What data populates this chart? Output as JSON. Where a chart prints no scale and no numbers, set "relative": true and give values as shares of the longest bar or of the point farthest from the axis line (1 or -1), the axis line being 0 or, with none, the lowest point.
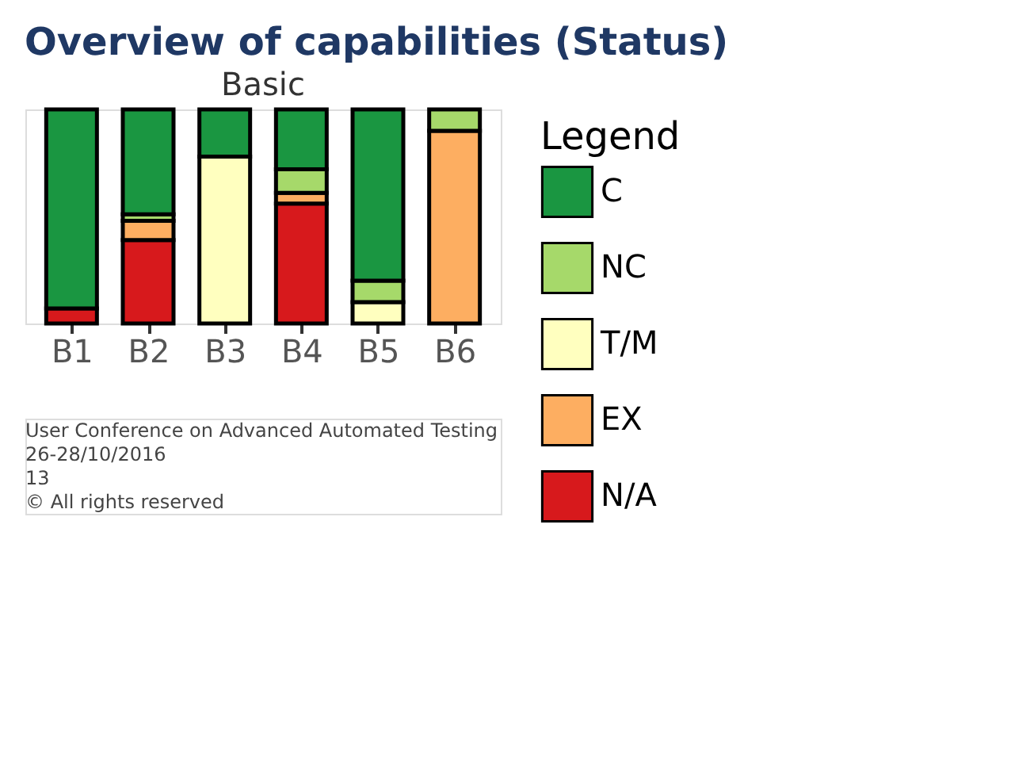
{
  "chart_data": {
    "type": "bar",
    "title": "Overview of capabilities (Status)",
    "subtitle": "Basic",
    "legend_title": "Legend",
    "categories": [
      "B1",
      "B2",
      "B3",
      "B4",
      "B5",
      "B6"
    ],
    "stacked": true,
    "relative": true,
    "legend": "right",
    "series": [
      {
        "name": "N/A",
        "color": "#d7191c",
        "values": [
          0.07,
          0.39,
          null,
          0.56,
          null,
          null
        ]
      },
      {
        "name": "EX",
        "color": "#fdae61",
        "values": [
          null,
          0.09,
          null,
          0.05,
          null,
          0.9
        ]
      },
      {
        "name": "T/M",
        "color": "#ffffbf",
        "values": [
          null,
          null,
          0.78,
          null,
          0.1,
          null
        ]
      },
      {
        "name": "NC",
        "color": "#a6d96a",
        "values": [
          null,
          0.03,
          null,
          0.11,
          0.1,
          0.1
        ]
      },
      {
        "name": "C",
        "color": "#1a9641",
        "values": [
          0.93,
          0.49,
          0.22,
          0.28,
          0.8,
          null
        ]
      }
    ],
    "annotations": [
      "User Conference on Advanced Automated Testing",
      "26-28/10/2016",
      "13",
      "© All rights reserved"
    ]
  }
}
